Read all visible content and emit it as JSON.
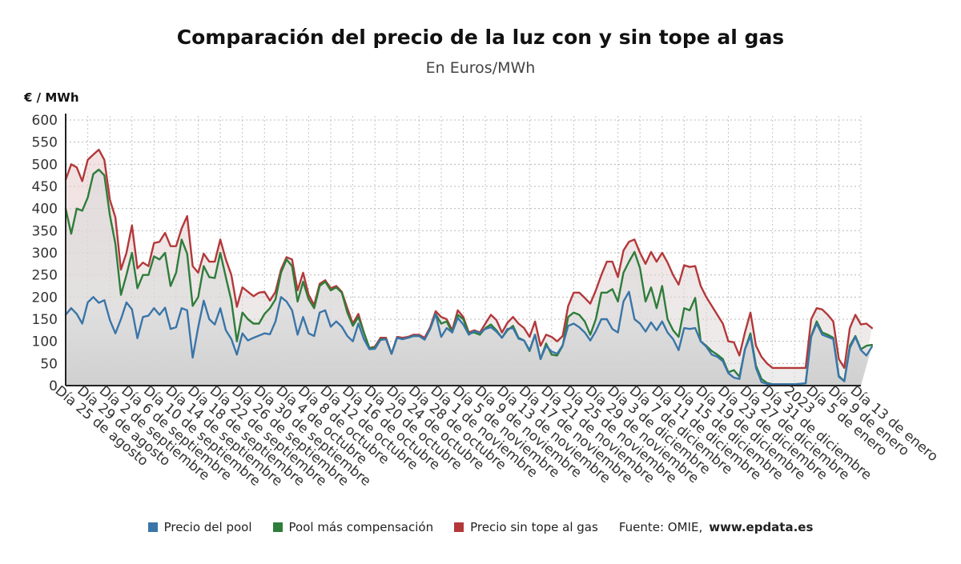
{
  "title": "Comparación del precio de la luz con y sin tope al gas",
  "subtitle": "En Euros/MWh",
  "unit_label": "€ / MWh",
  "legend": [
    {
      "label": "Precio del pool",
      "color": "#3a75a8"
    },
    {
      "label": "Pool más compensación",
      "color": "#2e7d3a"
    },
    {
      "label": "Precio sin tope al gas",
      "color": "#b3383a"
    }
  ],
  "source_prefix": "Fuente: OMIE, ",
  "source_site": "www.epdata.es",
  "chart_data": {
    "type": "line",
    "title": "Comparación del precio de la luz con y sin tope al gas",
    "ylabel": "€ / MWh",
    "ylim": [
      0,
      600
    ],
    "yticks": [
      0,
      50,
      100,
      150,
      200,
      250,
      300,
      350,
      400,
      450,
      500,
      550,
      600
    ],
    "x_tick_labels": [
      "Día 25 de agosto",
      "Día 29 de agosto",
      "Día 2 de septiembre",
      "Día 6 de septiembre",
      "Día 10 de septiembre",
      "Día 14 de septiembre",
      "Día 18 de septiembre",
      "Día 22 de septiembre",
      "Día 26 de septiembre",
      "Día 30 de septiembre",
      "Día 4 de octubre",
      "Día 8 de octubre",
      "Día 12 de octubre",
      "Día 16 de octubre",
      "Día 20 de octubre",
      "Día 24 de octubre",
      "Día 28 de octubre",
      "Día 1 de noviembre",
      "Día 5 de noviembre",
      "Día 9 de noviembre",
      "Día 13 de noviembre",
      "Día 17 de noviembre",
      "Día 21 de noviembre",
      "Día 25 de noviembre",
      "Día 29 de noviembre",
      "Día 3 de diciembre",
      "Día 7 de diciembre",
      "Día 11 de diciembre",
      "Día 15 de diciembre",
      "Día 19 de diciembre",
      "Día 23 de diciembre",
      "Día 27 de diciembre",
      "Día 31 de diciembre",
      "2023",
      "Día 5 de enero",
      "Día 9 de enero",
      "Día 13 de enero"
    ],
    "x_tick_positions": [
      0,
      4,
      8,
      12,
      16,
      20,
      24,
      28,
      32,
      36,
      40,
      44,
      48,
      52,
      56,
      60,
      64,
      68,
      72,
      76,
      80,
      84,
      88,
      92,
      96,
      100,
      104,
      108,
      112,
      116,
      120,
      124,
      128,
      132,
      136,
      140,
      144
    ],
    "n_points": 145,
    "series": [
      {
        "name": "Precio del pool",
        "values": [
          160,
          175,
          162,
          140,
          188,
          200,
          187,
          193,
          148,
          118,
          150,
          188,
          172,
          107,
          155,
          158,
          175,
          160,
          176,
          128,
          132,
          175,
          170,
          63,
          132,
          192,
          150,
          138,
          175,
          125,
          105,
          70,
          118,
          102,
          108,
          113,
          118,
          116,
          145,
          200,
          190,
          170,
          115,
          155,
          118,
          112,
          165,
          170,
          133,
          145,
          133,
          112,
          100,
          140,
          105,
          82,
          83,
          103,
          105,
          72,
          108,
          105,
          108,
          112,
          112,
          104,
          128,
          162,
          110,
          130,
          120,
          153,
          138,
          115,
          123,
          119,
          128,
          132,
          122,
          108,
          128,
          130,
          106,
          102,
          80,
          115,
          60,
          90,
          77,
          72,
          91,
          135,
          140,
          132,
          120,
          102,
          123,
          150,
          150,
          128,
          120,
          190,
          212,
          150,
          140,
          122,
          143,
          125,
          145,
          120,
          105,
          80,
          130,
          128,
          130,
          100,
          88,
          70,
          65,
          55,
          28,
          18,
          15,
          82,
          112,
          40,
          8,
          4,
          3,
          3,
          3,
          3,
          3,
          4,
          5,
          110,
          140,
          115,
          110,
          105,
          20,
          10,
          85,
          110,
          80,
          68,
          88
        ],
        "color": "#3a75a8"
      },
      {
        "name": "Pool más compensación",
        "values": [
          400,
          343,
          400,
          395,
          425,
          478,
          488,
          475,
          385,
          320,
          205,
          250,
          300,
          220,
          250,
          250,
          292,
          285,
          300,
          225,
          255,
          330,
          298,
          180,
          200,
          270,
          245,
          243,
          300,
          245,
          192,
          100,
          165,
          150,
          140,
          140,
          162,
          175,
          195,
          255,
          285,
          270,
          190,
          235,
          195,
          175,
          225,
          235,
          215,
          222,
          210,
          165,
          135,
          155,
          120,
          85,
          85,
          105,
          105,
          72,
          108,
          105,
          108,
          112,
          112,
          104,
          128,
          162,
          140,
          145,
          120,
          160,
          150,
          118,
          120,
          115,
          130,
          138,
          125,
          108,
          125,
          135,
          108,
          102,
          78,
          115,
          60,
          95,
          70,
          68,
          90,
          155,
          165,
          160,
          145,
          115,
          150,
          210,
          210,
          218,
          190,
          255,
          280,
          302,
          265,
          190,
          222,
          175,
          225,
          150,
          125,
          110,
          175,
          170,
          198,
          100,
          90,
          78,
          70,
          60,
          30,
          35,
          20,
          82,
          118,
          45,
          15,
          6,
          3,
          3,
          3,
          3,
          3,
          4,
          5,
          112,
          145,
          120,
          115,
          108,
          22,
          10,
          90,
          112,
          82,
          90,
          92
        ],
        "color": "#2e7d3a"
      },
      {
        "name": "Precio sin tope al gas",
        "values": [
          465,
          500,
          493,
          462,
          510,
          522,
          533,
          510,
          420,
          380,
          262,
          300,
          362,
          265,
          278,
          270,
          322,
          325,
          345,
          315,
          315,
          355,
          383,
          270,
          255,
          298,
          280,
          280,
          330,
          285,
          250,
          178,
          222,
          212,
          202,
          210,
          212,
          192,
          212,
          262,
          290,
          285,
          215,
          255,
          205,
          182,
          230,
          238,
          220,
          225,
          212,
          175,
          140,
          162,
          120,
          85,
          88,
          108,
          108,
          72,
          110,
          108,
          110,
          115,
          115,
          108,
          132,
          168,
          155,
          150,
          125,
          170,
          155,
          120,
          125,
          120,
          140,
          160,
          148,
          120,
          142,
          155,
          140,
          130,
          110,
          145,
          90,
          115,
          110,
          100,
          112,
          180,
          210,
          210,
          198,
          185,
          215,
          250,
          280,
          280,
          245,
          305,
          325,
          330,
          300,
          275,
          302,
          280,
          300,
          278,
          250,
          228,
          272,
          268,
          270,
          225,
          200,
          180,
          160,
          140,
          100,
          98,
          68,
          120,
          165,
          90,
          65,
          50,
          40,
          40,
          40,
          40,
          40,
          40,
          40,
          150,
          175,
          172,
          160,
          145,
          60,
          40,
          130,
          160,
          138,
          140,
          130
        ],
        "color": "#b3383a"
      }
    ]
  }
}
